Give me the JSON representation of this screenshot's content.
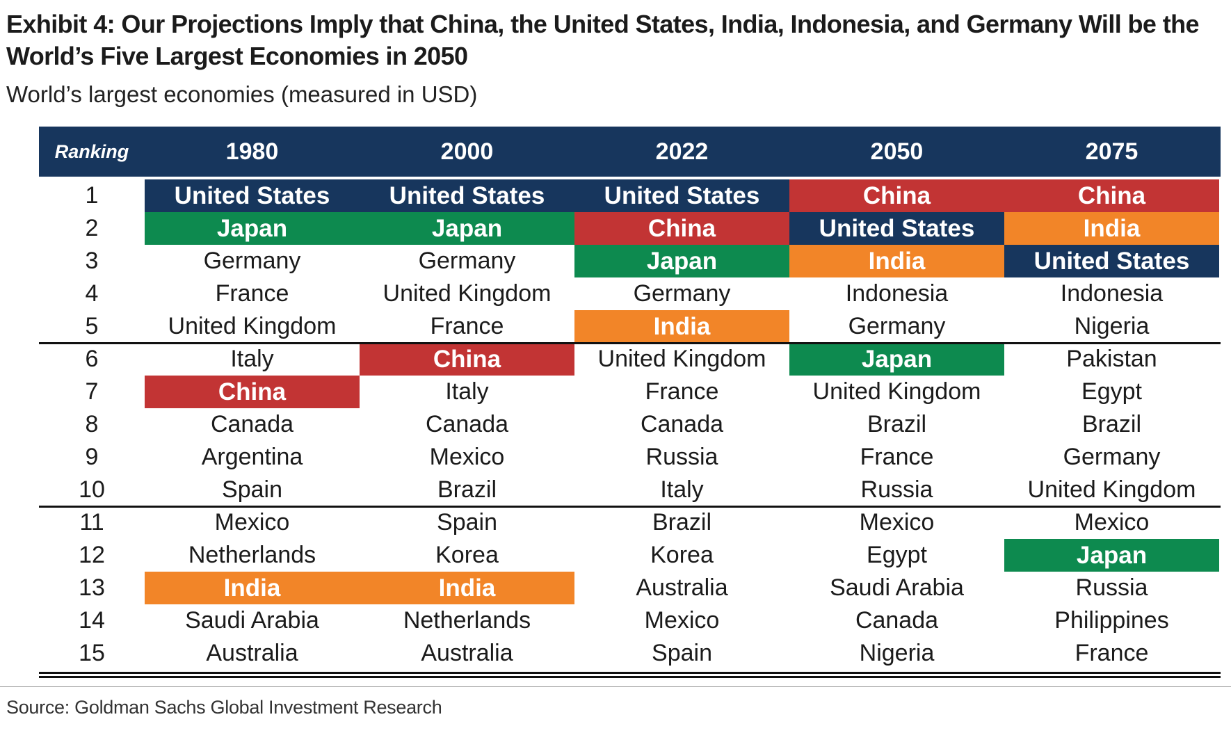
{
  "title": "Exhibit 4: Our Projections Imply that China, the United States, India, Indonesia, and Germany Will be the World’s Five Largest Economies in 2050",
  "subtitle": "World’s largest economies (measured in USD)",
  "source": "Source: Goldman Sachs Global Investment Research",
  "colors": {
    "header_bg": "#17365d",
    "United States": "#17365d",
    "China": "#c23434",
    "Japan": "#0d8a4f",
    "India": "#f28528"
  },
  "chart_data": {
    "type": "table",
    "columns": [
      "Ranking",
      "1980",
      "2000",
      "2022",
      "2050",
      "2075"
    ],
    "highlighted_countries": [
      "United States",
      "China",
      "Japan",
      "India"
    ],
    "group_separators_after_rank": [
      5,
      10
    ],
    "rows": [
      {
        "rank": "1",
        "values": [
          "United States",
          "United States",
          "United States",
          "China",
          "China"
        ]
      },
      {
        "rank": "2",
        "values": [
          "Japan",
          "Japan",
          "China",
          "United States",
          "India"
        ]
      },
      {
        "rank": "3",
        "values": [
          "Germany",
          "Germany",
          "Japan",
          "India",
          "United States"
        ]
      },
      {
        "rank": "4",
        "values": [
          "France",
          "United Kingdom",
          "Germany",
          "Indonesia",
          "Indonesia"
        ]
      },
      {
        "rank": "5",
        "values": [
          "United Kingdom",
          "France",
          "India",
          "Germany",
          "Nigeria"
        ]
      },
      {
        "rank": "6",
        "values": [
          "Italy",
          "China",
          "United Kingdom",
          "Japan",
          "Pakistan"
        ]
      },
      {
        "rank": "7",
        "values": [
          "China",
          "Italy",
          "France",
          "United Kingdom",
          "Egypt"
        ]
      },
      {
        "rank": "8",
        "values": [
          "Canada",
          "Canada",
          "Canada",
          "Brazil",
          "Brazil"
        ]
      },
      {
        "rank": "9",
        "values": [
          "Argentina",
          "Mexico",
          "Russia",
          "France",
          "Germany"
        ]
      },
      {
        "rank": "10",
        "values": [
          "Spain",
          "Brazil",
          "Italy",
          "Russia",
          "United Kingdom"
        ]
      },
      {
        "rank": "11",
        "values": [
          "Mexico",
          "Spain",
          "Brazil",
          "Mexico",
          "Mexico"
        ]
      },
      {
        "rank": "12",
        "values": [
          "Netherlands",
          "Korea",
          "Korea",
          "Egypt",
          "Japan"
        ]
      },
      {
        "rank": "13",
        "values": [
          "India",
          "India",
          "Australia",
          "Saudi Arabia",
          "Russia"
        ]
      },
      {
        "rank": "14",
        "values": [
          "Saudi Arabia",
          "Netherlands",
          "Mexico",
          "Canada",
          "Philippines"
        ]
      },
      {
        "rank": "15",
        "values": [
          "Australia",
          "Australia",
          "Spain",
          "Nigeria",
          "France"
        ]
      }
    ]
  }
}
